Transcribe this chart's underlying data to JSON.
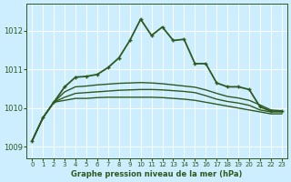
{
  "xlabel": "Graphe pression niveau de la mer (hPa)",
  "xlim": [
    -0.5,
    23.5
  ],
  "ylim": [
    1008.7,
    1012.7
  ],
  "yticks": [
    1009,
    1010,
    1011,
    1012
  ],
  "xticks": [
    0,
    1,
    2,
    3,
    4,
    5,
    6,
    7,
    8,
    9,
    10,
    11,
    12,
    13,
    14,
    15,
    16,
    17,
    18,
    19,
    20,
    21,
    22,
    23
  ],
  "bg_color": "#cceeff",
  "line_color": "#2d5a1e",
  "grid_color": "#ffffff",
  "lines": [
    {
      "x": [
        0,
        1,
        2,
        3,
        4,
        5,
        6,
        7,
        8,
        9,
        10,
        11,
        12,
        13,
        14,
        15,
        16,
        17,
        18,
        19,
        20,
        21,
        22,
        23
      ],
      "y": [
        1009.15,
        1009.75,
        1010.15,
        1010.2,
        1010.25,
        1010.25,
        1010.27,
        1010.28,
        1010.28,
        1010.28,
        1010.28,
        1010.28,
        1010.27,
        1010.25,
        1010.23,
        1010.2,
        1010.15,
        1010.1,
        1010.05,
        1010.0,
        1009.95,
        1009.9,
        1009.85,
        1009.85
      ],
      "marker": null,
      "lw": 1.0
    },
    {
      "x": [
        0,
        1,
        2,
        3,
        4,
        5,
        6,
        7,
        8,
        9,
        10,
        11,
        12,
        13,
        14,
        15,
        16,
        17,
        18,
        19,
        20,
        21,
        22,
        23
      ],
      "y": [
        1009.15,
        1009.75,
        1010.15,
        1010.28,
        1010.38,
        1010.4,
        1010.42,
        1010.44,
        1010.46,
        1010.47,
        1010.48,
        1010.48,
        1010.47,
        1010.45,
        1010.43,
        1010.4,
        1010.32,
        1010.23,
        1010.17,
        1010.13,
        1010.07,
        1009.95,
        1009.9,
        1009.9
      ],
      "marker": null,
      "lw": 1.0
    },
    {
      "x": [
        0,
        1,
        2,
        3,
        4,
        5,
        6,
        7,
        8,
        9,
        10,
        11,
        12,
        13,
        14,
        15,
        16,
        17,
        18,
        19,
        20,
        21,
        22,
        23
      ],
      "y": [
        1009.15,
        1009.75,
        1010.15,
        1010.42,
        1010.55,
        1010.57,
        1010.6,
        1010.62,
        1010.64,
        1010.65,
        1010.66,
        1010.65,
        1010.63,
        1010.6,
        1010.57,
        1010.54,
        1010.47,
        1010.38,
        1010.3,
        1010.26,
        1010.2,
        1010.08,
        1009.95,
        1009.93
      ],
      "marker": null,
      "lw": 1.0
    },
    {
      "x": [
        0,
        1,
        2,
        3,
        4,
        5,
        6,
        7,
        8,
        9,
        10,
        11,
        12,
        13,
        14,
        15,
        16,
        17,
        18,
        19,
        20,
        21,
        22,
        23
      ],
      "y": [
        1009.15,
        1009.75,
        1010.15,
        1010.55,
        1010.8,
        1010.82,
        1010.87,
        1011.05,
        1011.3,
        1011.75,
        1012.3,
        1011.88,
        1012.1,
        1011.75,
        1011.78,
        1011.15,
        1011.15,
        1010.65,
        1010.55,
        1010.55,
        1010.48,
        1010.03,
        1009.92,
        1009.92
      ],
      "marker": "+",
      "lw": 1.3
    }
  ]
}
